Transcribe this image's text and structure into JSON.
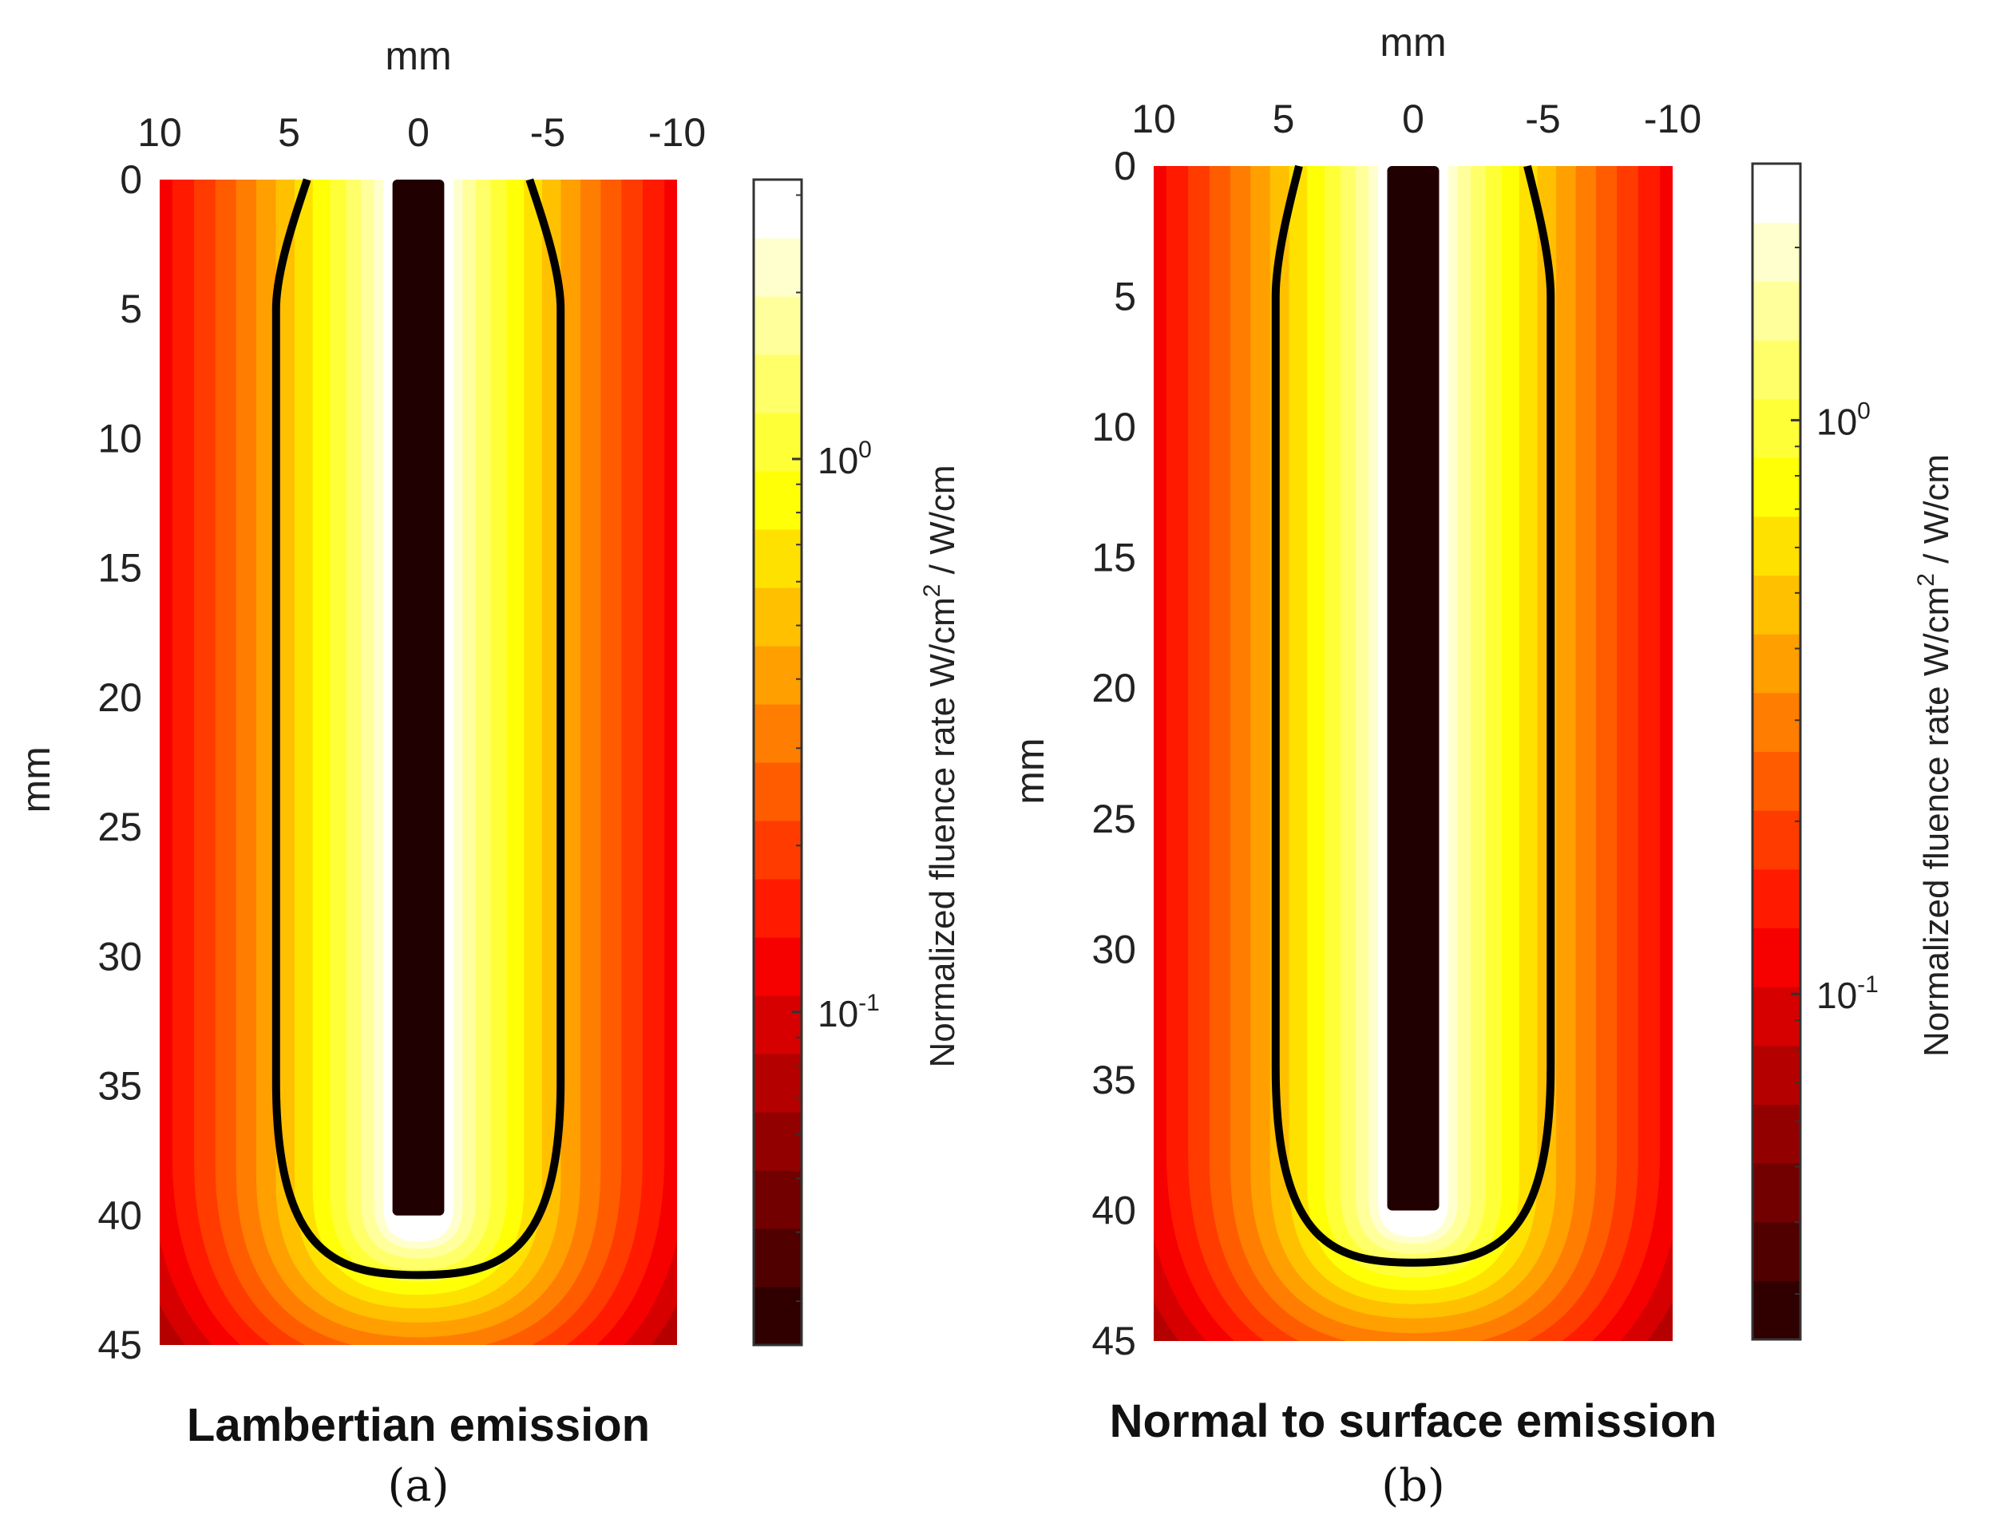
{
  "chart_data": [
    {
      "type": "heatmap",
      "title": "",
      "caption": "Lambertian emission",
      "panel_letter": "(a)",
      "xlabel": "mm",
      "ylabel": "mm",
      "xlim": [
        10,
        -10
      ],
      "ylim": [
        0,
        45
      ],
      "x_axis_position": "top",
      "y_axis_reversed": true,
      "x_ticks": [
        10,
        5,
        0,
        -5,
        -10
      ],
      "x_tick_labels": [
        "10",
        "5",
        "0",
        "-5",
        "-10"
      ],
      "y_ticks": [
        0,
        5,
        10,
        15,
        20,
        25,
        30,
        35,
        40,
        45
      ],
      "y_tick_labels": [
        "0",
        "5",
        "10",
        "15",
        "20",
        "25",
        "30",
        "35",
        "40",
        "45"
      ],
      "colormap": "hot",
      "color_scale": "log",
      "colorbar": {
        "label": "Normalized fluence rate W/cm",
        "label_superscript": "2",
        "label_suffix": " / W/cm",
        "range": [
          0.025,
          3.2
        ],
        "ticks": [
          0.1,
          1
        ],
        "tick_labels": [
          {
            "base": "10",
            "exp": "-1"
          },
          {
            "base": "10",
            "exp": "0"
          }
        ],
        "levels": 20
      },
      "fiber": {
        "x_range": [
          -1,
          1
        ],
        "depth_range": [
          0,
          40
        ]
      },
      "threshold_contour": {
        "half_width_mm": 5.5,
        "top_half_width_mm": 4.3,
        "bottom_depth_mm": 42.3
      }
    },
    {
      "type": "heatmap",
      "title": "",
      "caption": "Normal to surface emission",
      "panel_letter": "(b)",
      "xlabel": "mm",
      "ylabel": "mm",
      "xlim": [
        10,
        -10
      ],
      "ylim": [
        0,
        45
      ],
      "x_axis_position": "top",
      "y_axis_reversed": true,
      "x_ticks": [
        10,
        5,
        0,
        -5,
        -10
      ],
      "x_tick_labels": [
        "10",
        "5",
        "0",
        "-5",
        "-10"
      ],
      "y_ticks": [
        0,
        5,
        10,
        15,
        20,
        25,
        30,
        35,
        40,
        45
      ],
      "y_tick_labels": [
        "0",
        "5",
        "10",
        "15",
        "20",
        "25",
        "30",
        "35",
        "40",
        "45"
      ],
      "colormap": "hot",
      "color_scale": "log",
      "colorbar": {
        "label": "Normalized fluence rate W/cm",
        "label_superscript": "2",
        "label_suffix": " / W/cm",
        "range": [
          0.025,
          2.8
        ],
        "ticks": [
          0.1,
          1
        ],
        "tick_labels": [
          {
            "base": "10",
            "exp": "-1"
          },
          {
            "base": "10",
            "exp": "0"
          }
        ],
        "levels": 20
      },
      "fiber": {
        "x_range": [
          -1,
          1
        ],
        "depth_range": [
          0,
          40
        ]
      },
      "threshold_contour": {
        "half_width_mm": 5.3,
        "top_half_width_mm": 4.4,
        "bottom_depth_mm": 42.0
      }
    }
  ]
}
